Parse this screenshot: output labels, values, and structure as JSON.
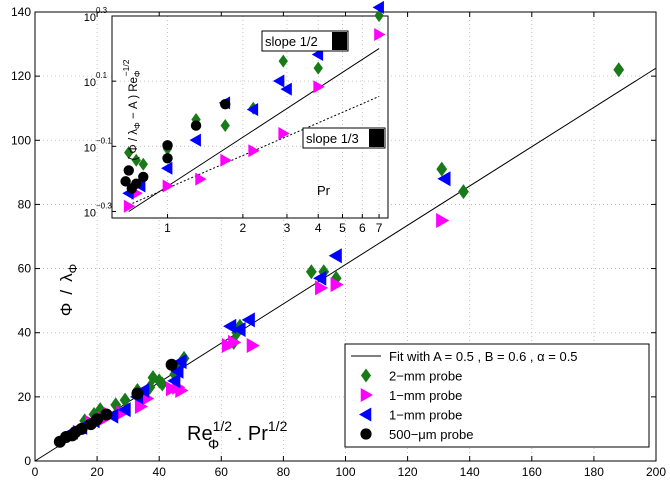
{
  "chart_data": [
    {
      "type": "scatter",
      "xlim": [
        0,
        200
      ],
      "ylim": [
        0,
        140
      ],
      "x_ticks": [
        0,
        20,
        40,
        60,
        80,
        100,
        120,
        140,
        160,
        180,
        200
      ],
      "y_ticks": [
        0,
        20,
        40,
        60,
        80,
        100,
        120,
        140
      ],
      "x_tick_labels": [
        "0",
        "20",
        "40",
        "60",
        "80",
        "100",
        "120",
        "140",
        "160",
        "180",
        "200"
      ],
      "y_tick_labels": [
        "0",
        "20",
        "40",
        "60",
        "80",
        "100",
        "120",
        "140"
      ],
      "xlabel": {
        "base": "Re",
        "sub": "Φ",
        "sup": "1/2",
        "rest": " . Pr",
        "sup2": "1/2"
      },
      "ylabel": {
        "num": "Φ",
        "slash": "/",
        "den": "λ",
        "den_sub": "Φ"
      },
      "grid": true,
      "legend_placement": "bottom-right",
      "fit_line": {
        "label": "Fit with A = 0.5 , B = 0.6 , α = 0.5",
        "points": [
          [
            0,
            0
          ],
          [
            200,
            122.5
          ]
        ]
      },
      "series": [
        {
          "name": "2−mm probe",
          "marker": "diamond",
          "color": "#1a7a1a",
          "x": [
            16,
            19,
            21,
            26,
            29,
            33,
            37,
            38,
            40,
            41,
            45,
            47,
            48,
            64,
            65,
            66,
            89,
            93,
            97,
            131,
            138,
            188
          ],
          "y": [
            12.5,
            14.5,
            16,
            17.5,
            19,
            22,
            23,
            26,
            25,
            24,
            27,
            30,
            32,
            37,
            40,
            42,
            59,
            59,
            57,
            91,
            84,
            122
          ]
        },
        {
          "name": "1−mm probe",
          "marker": "triangle-right",
          "color": "#ff00ff",
          "x": [
            14,
            18,
            22,
            24,
            28,
            34,
            36,
            44,
            46,
            47,
            62,
            64,
            70,
            92,
            97,
            131
          ],
          "y": [
            9,
            12,
            13,
            14.5,
            15,
            17,
            19.5,
            22.5,
            23,
            22,
            36,
            37,
            36,
            54,
            55,
            75
          ]
        },
        {
          "name": "1−mm probe",
          "marker": "triangle-left",
          "color": "#0000ff",
          "x": [
            12,
            15,
            19,
            25,
            29,
            33,
            35,
            45,
            46,
            47,
            63,
            66,
            69,
            92,
            97,
            132
          ],
          "y": [
            9,
            10.5,
            12.5,
            14,
            16,
            20,
            22,
            25,
            28,
            31,
            42,
            41,
            44,
            57,
            64,
            88
          ]
        },
        {
          "name": "500−μm probe",
          "marker": "circle",
          "color": "#000000",
          "x": [
            8,
            10,
            12,
            13,
            15,
            18,
            20,
            23,
            33,
            44
          ],
          "y": [
            6,
            7.5,
            8,
            9,
            10,
            11.5,
            13,
            14.5,
            21,
            30
          ]
        }
      ]
    },
    {
      "type": "scatter",
      "scale": "log-log",
      "xlim": [
        0.6,
        7.6
      ],
      "ylim_log10": [
        -0.32,
        0.3
      ],
      "x_ticks": [
        1,
        2,
        3,
        4,
        5,
        6,
        7
      ],
      "x_tick_labels": [
        "1",
        "2",
        "3",
        "4",
        "5",
        "6",
        "7"
      ],
      "y_ticks_log10": [
        -0.3,
        -0.1,
        0.1,
        0.3
      ],
      "y_tick_labels": [
        {
          "base": "10",
          "exp": "−0.3"
        },
        {
          "base": "10",
          "exp": "−0.1"
        },
        {
          "base": "10",
          "exp": "0.1"
        },
        {
          "base": "10",
          "exp": "0.3"
        }
      ],
      "xlabel": "Pr",
      "ylabel": {
        "main": "( Φ / λ",
        "sub1": "Φ",
        "mid": " − A )  Re",
        "sub2": "Φ",
        "sup": "−1/2"
      },
      "grid": true,
      "annotations": [
        "slope 1/2",
        "slope 1/3"
      ],
      "lines": [
        {
          "label": "slope 1/2",
          "style": "solid",
          "points": [
            [
              0.7,
              -0.3
            ],
            [
              7.0,
              0.2
            ]
          ]
        },
        {
          "label": "slope 1/3",
          "style": "dotted",
          "points": [
            [
              0.7,
              -0.28
            ],
            [
              7.0,
              0.053
            ]
          ]
        }
      ],
      "series": [
        {
          "name": "2−mm probe",
          "marker": "diamond",
          "color": "#1a7a1a",
          "x": [
            0.7,
            0.75,
            0.8,
            1.0,
            1.3,
            1.7,
            2.2,
            2.9,
            4.0,
            7.0
          ],
          "y": [
            0.76,
            0.72,
            0.7,
            0.78,
            0.96,
            0.92,
            1.04,
            1.45,
            1.38,
            2.0
          ]
        },
        {
          "name": "1−mm probe",
          "marker": "triangle-right",
          "color": "#ff00ff",
          "x": [
            0.7,
            0.75,
            1.0,
            1.35,
            1.7,
            2.2,
            2.9,
            4.0,
            7.0
          ],
          "y": [
            0.52,
            0.57,
            0.6,
            0.63,
            0.72,
            0.77,
            0.87,
            1.21,
            1.75
          ]
        },
        {
          "name": "1−mm probe",
          "marker": "triangle-left",
          "color": "#0000ff",
          "x": [
            0.7,
            0.78,
            1.0,
            1.3,
            1.7,
            2.2,
            2.8,
            3.0,
            4.0,
            7.0
          ],
          "y": [
            0.57,
            0.6,
            0.68,
            0.83,
            1.08,
            1.03,
            1.26,
            1.19,
            1.52,
            2.12
          ]
        },
        {
          "name": "500−μm probe",
          "marker": "circle",
          "color": "#000000",
          "x": [
            0.68,
            0.7,
            0.72,
            0.75,
            0.8,
            1.0,
            1.0,
            1.3,
            1.7
          ],
          "y": [
            0.62,
            0.67,
            0.59,
            0.61,
            0.64,
            0.73,
            0.8,
            0.92,
            1.07
          ]
        }
      ]
    }
  ]
}
